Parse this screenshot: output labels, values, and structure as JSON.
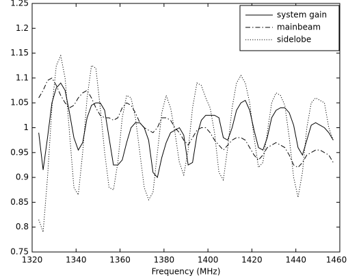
{
  "chart_data": {
    "type": "line",
    "xlabel": "Frequency (MHz)",
    "x": [
      1323,
      1325,
      1327,
      1329,
      1331,
      1333,
      1335,
      1337,
      1339,
      1341,
      1343,
      1345,
      1347,
      1349,
      1351,
      1353,
      1355,
      1357,
      1359,
      1361,
      1363,
      1365,
      1367,
      1369,
      1371,
      1373,
      1375,
      1377,
      1379,
      1381,
      1383,
      1385,
      1387,
      1389,
      1391,
      1393,
      1395,
      1397,
      1399,
      1401,
      1403,
      1405,
      1407,
      1409,
      1411,
      1413,
      1415,
      1417,
      1419,
      1421,
      1423,
      1425,
      1427,
      1429,
      1431,
      1433,
      1435,
      1437,
      1439,
      1441,
      1443,
      1445,
      1447,
      1449,
      1451,
      1453,
      1455,
      1457
    ],
    "series": [
      {
        "name": "system gain",
        "color": "#000000",
        "dash": "solid",
        "values": [
          0.99,
          0.915,
          0.98,
          1.05,
          1.08,
          1.09,
          1.075,
          1.03,
          0.98,
          0.955,
          0.97,
          1.02,
          1.045,
          1.05,
          1.05,
          1.035,
          0.98,
          0.925,
          0.925,
          0.935,
          0.97,
          1.0,
          1.01,
          1.01,
          1.0,
          0.975,
          0.91,
          0.9,
          0.94,
          0.97,
          0.99,
          0.995,
          1.0,
          0.985,
          0.925,
          0.93,
          0.985,
          1.015,
          1.025,
          1.025,
          1.025,
          1.02,
          0.98,
          0.975,
          1.0,
          1.035,
          1.05,
          1.055,
          1.035,
          0.995,
          0.96,
          0.955,
          0.98,
          1.02,
          1.035,
          1.04,
          1.04,
          1.03,
          1.005,
          0.96,
          0.945,
          0.975,
          1.005,
          1.01,
          1.005,
          1.0,
          0.99,
          0.975
        ]
      },
      {
        "name": "mainbeam",
        "color": "#000000",
        "dash": "dashdot",
        "values": [
          1.06,
          1.075,
          1.095,
          1.1,
          1.085,
          1.065,
          1.05,
          1.04,
          1.045,
          1.06,
          1.07,
          1.075,
          1.06,
          1.04,
          1.025,
          1.02,
          1.02,
          1.015,
          1.02,
          1.04,
          1.05,
          1.045,
          1.03,
          1.01,
          1.0,
          0.995,
          0.99,
          1.0,
          1.02,
          1.02,
          1.015,
          1.0,
          0.99,
          0.975,
          0.965,
          0.98,
          0.995,
          1.0,
          1.0,
          0.99,
          0.975,
          0.965,
          0.955,
          0.965,
          0.975,
          0.98,
          0.98,
          0.975,
          0.96,
          0.945,
          0.935,
          0.945,
          0.96,
          0.965,
          0.97,
          0.965,
          0.96,
          0.945,
          0.925,
          0.92,
          0.93,
          0.945,
          0.95,
          0.955,
          0.955,
          0.95,
          0.945,
          0.93
        ]
      },
      {
        "name": "sidelobe",
        "color": "#000000",
        "dash": "dotted",
        "values": [
          0.815,
          0.79,
          0.9,
          1.04,
          1.125,
          1.145,
          1.1,
          0.99,
          0.88,
          0.865,
          0.95,
          1.06,
          1.125,
          1.12,
          1.04,
          0.95,
          0.88,
          0.875,
          0.93,
          1.02,
          1.065,
          1.06,
          1.02,
          0.95,
          0.88,
          0.855,
          0.87,
          0.95,
          1.03,
          1.065,
          1.04,
          0.99,
          0.93,
          0.905,
          0.955,
          1.04,
          1.09,
          1.085,
          1.06,
          1.04,
          0.99,
          0.91,
          0.895,
          0.96,
          1.04,
          1.09,
          1.105,
          1.09,
          1.05,
          0.98,
          0.92,
          0.93,
          0.99,
          1.05,
          1.07,
          1.065,
          1.045,
          0.98,
          0.9,
          0.86,
          0.91,
          1.0,
          1.05,
          1.06,
          1.055,
          1.05,
          1.0,
          0.975
        ]
      }
    ],
    "xlim": [
      1320,
      1460
    ],
    "xticks": [
      1320,
      1340,
      1360,
      1380,
      1400,
      1420,
      1440,
      1460
    ],
    "ylim": [
      0.75,
      1.25
    ],
    "yticks": [
      0.75,
      0.8,
      0.85,
      0.9,
      0.95,
      1,
      1.05,
      1.1,
      1.15,
      1.2,
      1.25
    ],
    "legend": "upper right",
    "grid": false
  }
}
